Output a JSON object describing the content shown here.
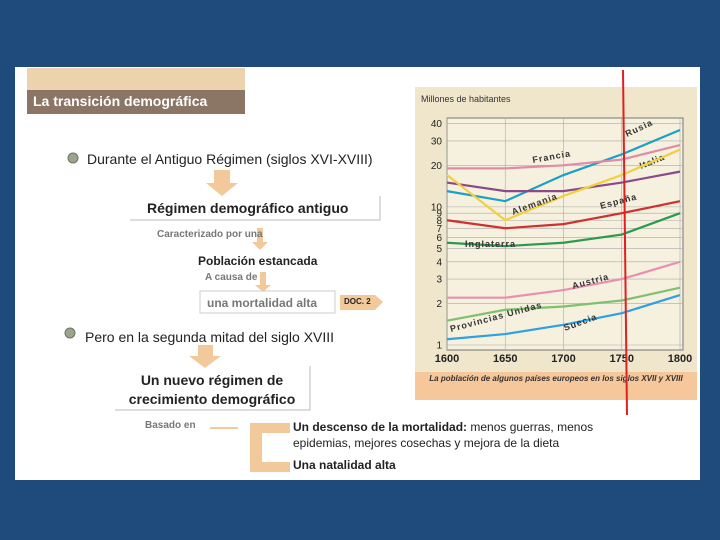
{
  "header": {
    "title": "La transición demográfica"
  },
  "diagram": {
    "bullet_1": "Durante el Antiguo Régimen (siglos XVI-XVIII)",
    "box_1": "Régimen demográfico antiguo",
    "note_1": "Caracterizado por una",
    "box_2": "Población estancada",
    "note_2": "A causa de",
    "box_3": "una mortalidad alta",
    "doc_tag": "DOC. 2",
    "bullet_2": "Pero en la segunda mitad del siglo XVIII",
    "box_4": "Un nuevo régimen de crecimiento demográfico",
    "note_3": "Basado en",
    "basis": [
      {
        "label": "Un descenso de la mortalidad:",
        "text": "menos guerras, menos epidemias, mejores cosechas y mejora de la dieta"
      },
      {
        "label": "Una natalidad alta"
      }
    ]
  },
  "chart_data": {
    "type": "line",
    "y_label": "Millones de habitantes",
    "caption": "La población de algunos países europeos en los siglos XVII y XVIII",
    "x": [
      1600,
      1650,
      1700,
      1750,
      1800
    ],
    "xlim": [
      1600,
      1800
    ],
    "xticks": [
      1600,
      1650,
      1700,
      1750,
      1800
    ],
    "ylim": [
      0.92,
      44
    ],
    "yticks": [
      1,
      2,
      3,
      4,
      5,
      6,
      7,
      8,
      9,
      10,
      20,
      30,
      40
    ],
    "log_scale": true,
    "grid": true,
    "series": [
      {
        "name": "Rusia",
        "color": "#1aa0c8",
        "values": [
          13,
          11,
          17,
          24,
          36
        ]
      },
      {
        "name": "Francia",
        "color": "#e08aa8",
        "values": [
          19,
          19,
          20,
          22,
          28
        ]
      },
      {
        "name": "Italia",
        "color": "#8a4a8a",
        "values": [
          15,
          13,
          13,
          15,
          18
        ]
      },
      {
        "name": "Alemania",
        "color": "#f0d040",
        "values": [
          17,
          8,
          12,
          17,
          26
        ]
      },
      {
        "name": "España",
        "color": "#d03030",
        "values": [
          8,
          7,
          7.5,
          9,
          11
        ]
      },
      {
        "name": "Inglaterra",
        "color": "#2a9a50",
        "values": [
          5.5,
          5.2,
          5.5,
          6.3,
          9
        ]
      },
      {
        "name": "Austria",
        "color": "#e890b0",
        "values": [
          2.2,
          2.2,
          2.5,
          3,
          4
        ]
      },
      {
        "name": "Provincias Unidas",
        "color": "#80c070",
        "values": [
          1.5,
          1.8,
          1.9,
          2.1,
          2.6
        ]
      },
      {
        "name": "Suecia",
        "color": "#30a0e0",
        "values": [
          1.1,
          1.2,
          1.4,
          1.7,
          2.3
        ]
      }
    ]
  }
}
